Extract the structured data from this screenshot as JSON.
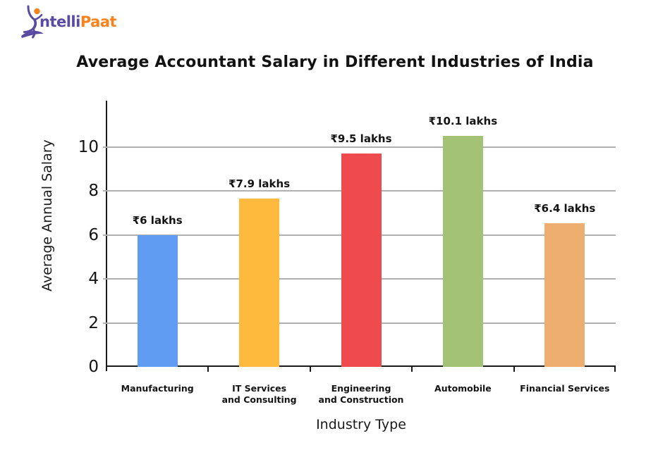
{
  "logo": {
    "name": "IntelliPaat",
    "text_primary": "ntelli",
    "text_secondary": "Paat",
    "figure_icon": "jumping-person-icon",
    "color_primary": "#5B4AA2",
    "color_secondary": "#F8821E"
  },
  "chart_data": {
    "type": "bar",
    "title": "Average Accountant Salary in Different Industries of  India",
    "xlabel": "Industry Type",
    "ylabel": "Average Annual Salary",
    "categories": [
      "Manufacturing",
      "IT Services\nand Consulting",
      "Engineering\nand Construction",
      "Automobile",
      "Financial Services"
    ],
    "values": [
      6,
      7.9,
      9.5,
      10.1,
      6.4
    ],
    "bar_labels": [
      "₹6 lakhs",
      "₹7.9 lakhs",
      "₹9.5 lakhs",
      "₹10.1 lakhs",
      "₹6.4 lakhs"
    ],
    "bar_colors": [
      "#609CF1",
      "#FDBA3C",
      "#EF4B4E",
      "#A4C276",
      "#EEAE70"
    ],
    "drawn_values": [
      6.0,
      7.65,
      9.7,
      10.5,
      6.55
    ],
    "yticks": [
      0,
      2,
      4,
      6,
      8,
      10
    ],
    "ylim": [
      0,
      12.1
    ],
    "grid": "horizontal",
    "legend": "none",
    "axis_color": "#1a1a1a",
    "gridline_color": "#b0b0b0"
  }
}
